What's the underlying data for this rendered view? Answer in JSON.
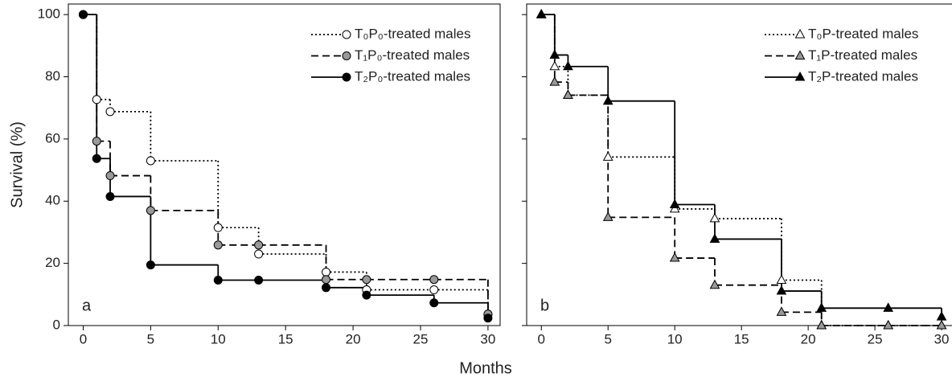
{
  "xlabel": "Months",
  "chart_data": [
    {
      "type": "step",
      "panel_label": "a",
      "ylabel": "Survival (%)",
      "marker": "circle",
      "legend": "upper right",
      "x": [
        0,
        1,
        2,
        5,
        10,
        13,
        18,
        21,
        26,
        30
      ],
      "series": [
        {
          "name": "T₀P₀-treated males",
          "color": "#000000",
          "marker_fill": "#ffffff",
          "linestyle": "dotted",
          "values": [
            100,
            72.7,
            68.8,
            53,
            31.5,
            23,
            17.2,
            11.5,
            11.5,
            3.5
          ]
        },
        {
          "name": "T₁P₀-treated males",
          "color": "#000000",
          "marker_fill": "#999999",
          "linestyle": "dashed",
          "values": [
            100,
            59.3,
            48.2,
            37,
            25.9,
            25.9,
            14.8,
            14.8,
            14.8,
            3.7
          ]
        },
        {
          "name": "T₂P₀-treated males",
          "color": "#000000",
          "marker_fill": "#000000",
          "linestyle": "solid",
          "values": [
            100,
            53.7,
            41.5,
            19.5,
            14.6,
            14.6,
            12.2,
            9.8,
            7.3,
            2.4
          ]
        }
      ],
      "xlim": [
        -1.1,
        30.9
      ],
      "ylim": [
        0,
        103.4
      ],
      "xticks": [
        0,
        5,
        10,
        15,
        20,
        25,
        30
      ],
      "yticks": [
        0,
        20,
        40,
        60,
        80,
        100
      ],
      "show_ytick_labels": true
    },
    {
      "type": "step",
      "panel_label": "b",
      "marker": "triangle",
      "legend": "upper right",
      "x": [
        0,
        1,
        2,
        5,
        10,
        13,
        18,
        21,
        26,
        30
      ],
      "series": [
        {
          "name": "T₀P-treated males",
          "color": "#000000",
          "marker_fill": "#ffffff",
          "linestyle": "dotted",
          "values": [
            100,
            83.3,
            74.1,
            54.2,
            37.5,
            34.4,
            14.6,
            0,
            0,
            0
          ]
        },
        {
          "name": "T₁P-treated males",
          "color": "#000000",
          "marker_fill": "#999999",
          "linestyle": "dashed",
          "values": [
            100,
            78.3,
            74.1,
            34.8,
            21.7,
            13,
            4.3,
            0,
            0,
            0
          ]
        },
        {
          "name": "T₂P-treated males",
          "color": "#000000",
          "marker_fill": "#000000",
          "linestyle": "solid",
          "values": [
            100,
            87,
            83.3,
            72.2,
            38.9,
            27.8,
            11.1,
            5.6,
            5.6,
            2.8
          ]
        }
      ],
      "xlim": [
        -1.1,
        30.9
      ],
      "ylim": [
        0,
        103.4
      ],
      "xticks": [
        0,
        5,
        10,
        15,
        20,
        25,
        30
      ],
      "yticks": [
        0,
        20,
        40,
        60,
        80,
        100
      ],
      "show_ytick_labels": false
    }
  ]
}
